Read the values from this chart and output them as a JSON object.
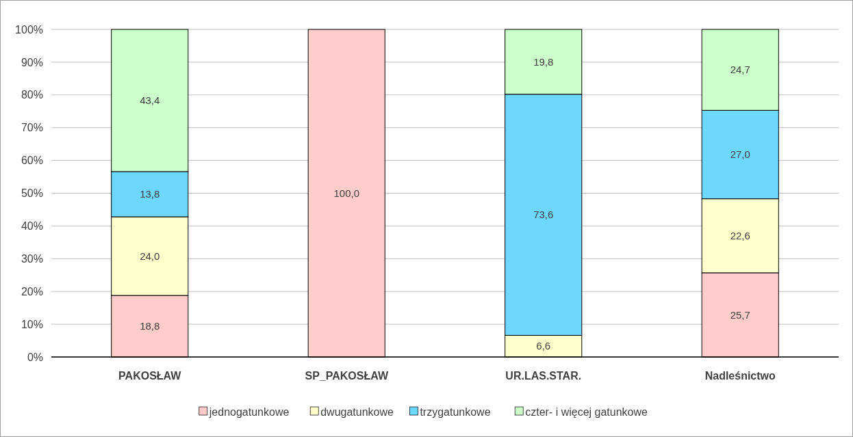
{
  "chart_data": {
    "type": "bar",
    "stacked": true,
    "categories": [
      "PAKOSŁAW",
      "SP_PAKOSŁAW",
      "UR.LAS.STAR.",
      "Nadleśnictwo"
    ],
    "series": [
      {
        "name": "jednogatunkowe",
        "color": "#ffcccc",
        "values": [
          18.8,
          100,
          0,
          25.7
        ],
        "value_labels": [
          "18,8",
          "100,0",
          null,
          "25,7"
        ]
      },
      {
        "name": "dwugatunkowe",
        "color": "#ffffcc",
        "values": [
          24.0,
          0,
          6.6,
          22.6
        ],
        "value_labels": [
          "24,0",
          null,
          "6,6",
          "22,6"
        ]
      },
      {
        "name": "trzygatunkowe",
        "color": "#6dd7fd",
        "values": [
          13.8,
          0,
          73.6,
          27.0
        ],
        "value_labels": [
          "13,8",
          null,
          "73,6",
          "27,0"
        ]
      },
      {
        "name": "czter- i więcej gatunkowe",
        "color": "#ccffcc",
        "values": [
          43.4,
          0,
          19.8,
          24.7
        ],
        "value_labels": [
          "43,4",
          null,
          "19,8",
          "24,7"
        ]
      }
    ],
    "ylim": [
      0,
      100
    ],
    "yticks": [
      {
        "value": 0,
        "label": "0%"
      },
      {
        "value": 10,
        "label": "10%"
      },
      {
        "value": 20,
        "label": "20%"
      },
      {
        "value": 30,
        "label": "30%"
      },
      {
        "value": 40,
        "label": "40%"
      },
      {
        "value": 50,
        "label": "50%"
      },
      {
        "value": 60,
        "label": "60%"
      },
      {
        "value": 70,
        "label": "70%"
      },
      {
        "value": 80,
        "label": "80%"
      },
      {
        "value": 90,
        "label": "90%"
      },
      {
        "value": 100,
        "label": "100%"
      }
    ],
    "grid": "y",
    "legend": "bottom"
  }
}
